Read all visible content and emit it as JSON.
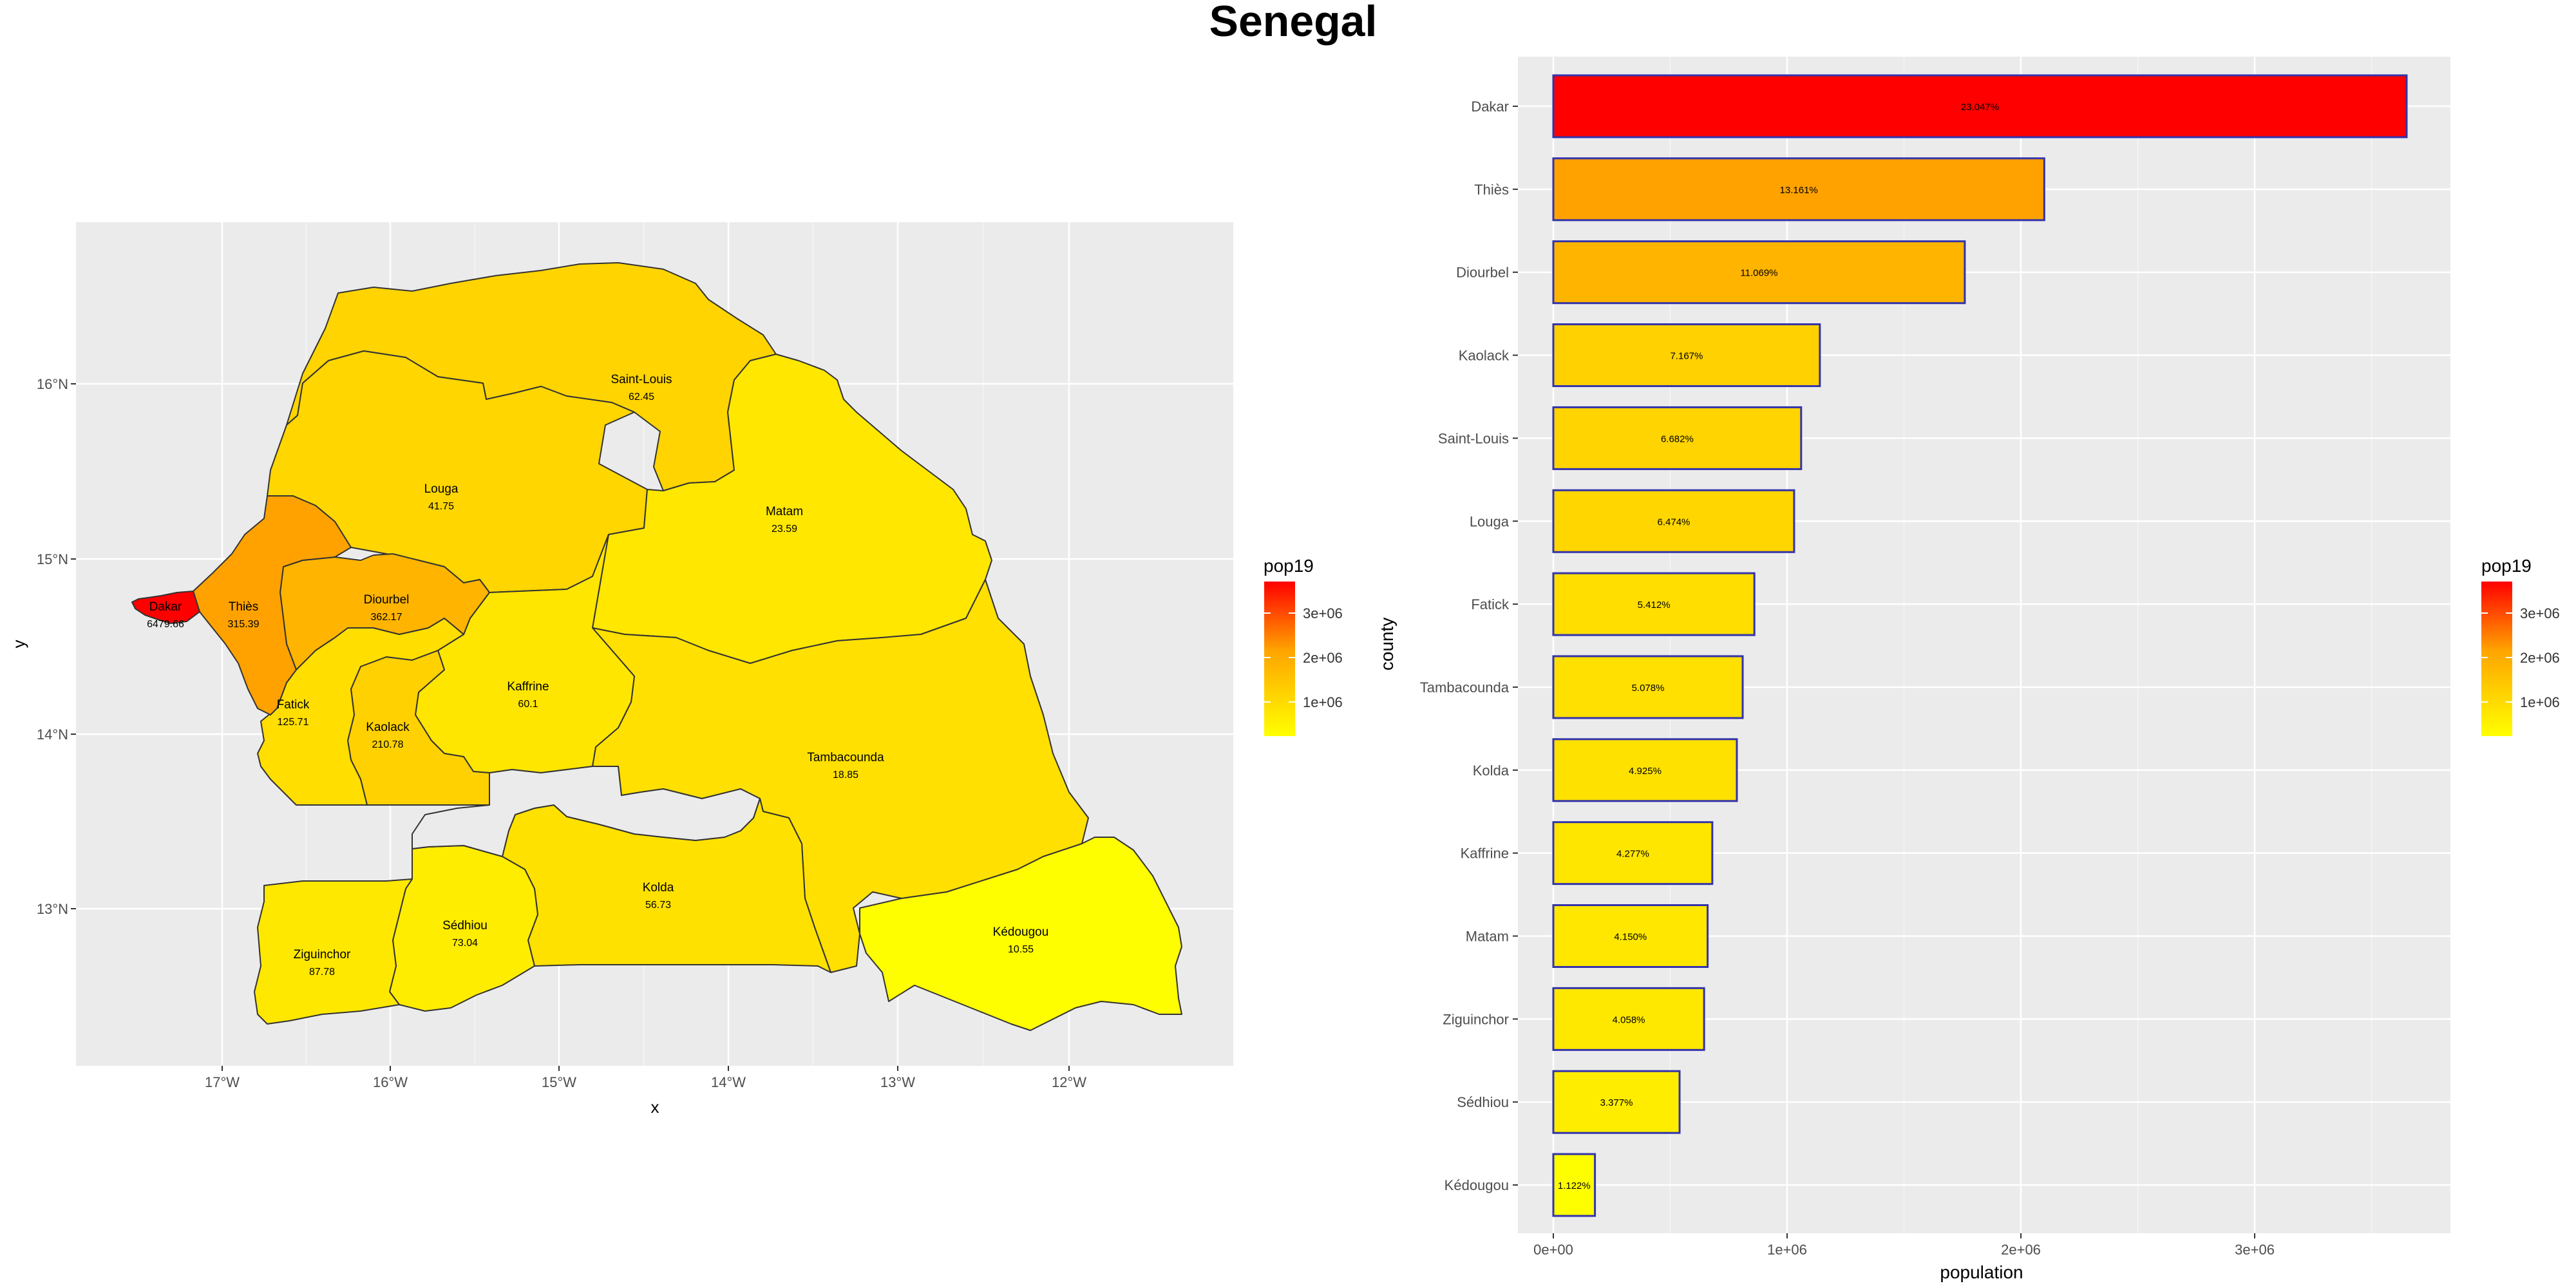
{
  "title": "Senegal",
  "colors": {
    "low": "#FFFF00",
    "mid": "#FFA500",
    "high": "#FF0000",
    "bar_outline": "#3333AA",
    "panel_bg": "#EBEBEB",
    "grid": "#FFFFFF",
    "region_border": "#333333"
  },
  "map": {
    "xlabel": "x",
    "ylabel": "y",
    "x_ticks": [
      "17°W",
      "16°W",
      "15°W",
      "14°W",
      "13°W",
      "12°W"
    ],
    "y_ticks": [
      "16°N",
      "15°N",
      "14°N",
      "13°N"
    ],
    "legend": {
      "title": "pop19",
      "labels": [
        "3e+06",
        "2e+06",
        "1e+06"
      ]
    },
    "regions": [
      {
        "name": "Dakar",
        "value": "6479.66",
        "density": 6479.66
      },
      {
        "name": "Thiès",
        "value": "315.39",
        "density": 315.39
      },
      {
        "name": "Diourbel",
        "value": "362.17",
        "density": 362.17
      },
      {
        "name": "Louga",
        "value": "41.75",
        "density": 41.75
      },
      {
        "name": "Saint-Louis",
        "value": "62.45",
        "density": 62.45
      },
      {
        "name": "Matam",
        "value": "23.59",
        "density": 23.59
      },
      {
        "name": "Fatick",
        "value": "125.71",
        "density": 125.71
      },
      {
        "name": "Kaolack",
        "value": "210.78",
        "density": 210.78
      },
      {
        "name": "Kaffrine",
        "value": "60.1",
        "density": 60.1
      },
      {
        "name": "Tambacounda",
        "value": "18.85",
        "density": 18.85
      },
      {
        "name": "Kolda",
        "value": "56.73",
        "density": 56.73
      },
      {
        "name": "Sédhiou",
        "value": "73.04",
        "density": 73.04
      },
      {
        "name": "Ziguinchor",
        "value": "87.78",
        "density": 87.78
      },
      {
        "name": "Kédougou",
        "value": "10.55",
        "density": 10.55
      }
    ]
  },
  "chart_data": {
    "type": "bar",
    "orientation": "horizontal",
    "xlabel": "population",
    "ylabel": "county",
    "xlim": [
      0,
      3800000
    ],
    "x_ticks": [
      "0e+00",
      "1e+06",
      "2e+06",
      "3e+06"
    ],
    "x_tick_values": [
      0,
      1000000,
      2000000,
      3000000
    ],
    "legend": {
      "title": "pop19",
      "labels": [
        "3e+06",
        "2e+06",
        "1e+06"
      ]
    },
    "categories": [
      "Dakar",
      "Thiès",
      "Diourbel",
      "Kaolack",
      "Saint-Louis",
      "Louga",
      "Fatick",
      "Tambacounda",
      "Kolda",
      "Kaffrine",
      "Matam",
      "Ziguinchor",
      "Sédhiou",
      "Kédougou"
    ],
    "values": [
      3650000,
      2100000,
      1760000,
      1140000,
      1060000,
      1030000,
      860000,
      810000,
      785000,
      680000,
      660000,
      645000,
      540000,
      178000
    ],
    "labels": [
      "23.047%",
      "13.161%",
      "11.069%",
      "7.167%",
      "6.682%",
      "6.474%",
      "5.412%",
      "5.078%",
      "4.925%",
      "4.277%",
      "4.150%",
      "4.058%",
      "3.377%",
      "1.122%"
    ]
  }
}
